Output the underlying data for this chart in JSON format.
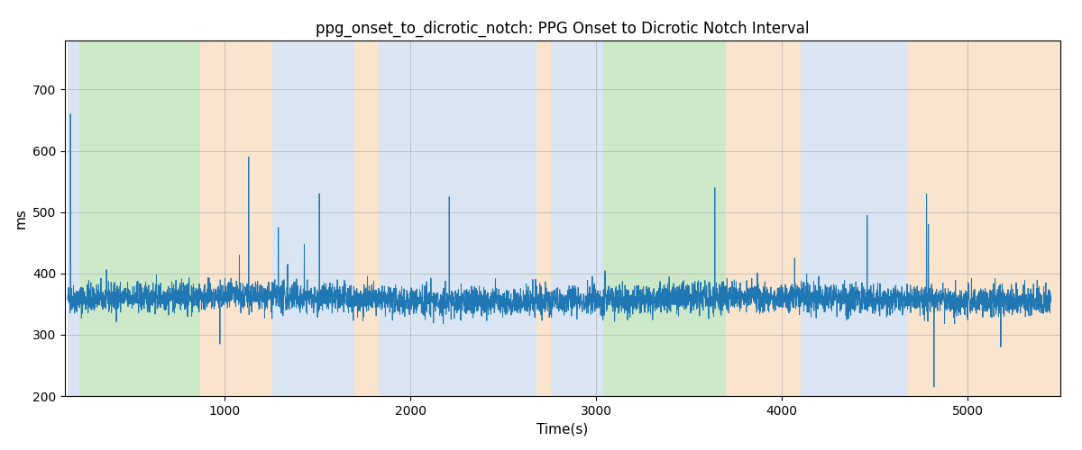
{
  "title": "ppg_onset_to_dicrotic_notch: PPG Onset to Dicrotic Notch Interval",
  "xlabel": "Time(s)",
  "ylabel": "ms",
  "xlim": [
    140,
    5500
  ],
  "ylim": [
    200,
    780
  ],
  "yticks": [
    200,
    300,
    400,
    500,
    600,
    700
  ],
  "xticks": [
    1000,
    2000,
    3000,
    4000,
    5000
  ],
  "line_color": "#1f77b4",
  "line_width": 0.7,
  "grid_color": "#b0b0b0",
  "colored_bands": [
    {
      "xmin": 155,
      "xmax": 220,
      "color": "#aec6e8",
      "alpha": 0.45
    },
    {
      "xmin": 220,
      "xmax": 870,
      "color": "#90cc85",
      "alpha": 0.45
    },
    {
      "xmin": 870,
      "xmax": 1255,
      "color": "#f5c592",
      "alpha": 0.45
    },
    {
      "xmin": 1255,
      "xmax": 1700,
      "color": "#aec6e8",
      "alpha": 0.45
    },
    {
      "xmin": 1700,
      "xmax": 1830,
      "color": "#f5c592",
      "alpha": 0.45
    },
    {
      "xmin": 1830,
      "xmax": 2680,
      "color": "#aec6e8",
      "alpha": 0.45
    },
    {
      "xmin": 2680,
      "xmax": 2755,
      "color": "#f5c592",
      "alpha": 0.45
    },
    {
      "xmin": 2755,
      "xmax": 2960,
      "color": "#aec6e8",
      "alpha": 0.45
    },
    {
      "xmin": 2960,
      "xmax": 3040,
      "color": "#aec6e8",
      "alpha": 0.45
    },
    {
      "xmin": 3040,
      "xmax": 3700,
      "color": "#90cc85",
      "alpha": 0.45
    },
    {
      "xmin": 3700,
      "xmax": 3770,
      "color": "#f5c592",
      "alpha": 0.45
    },
    {
      "xmin": 3770,
      "xmax": 4100,
      "color": "#f5c592",
      "alpha": 0.45
    },
    {
      "xmin": 4100,
      "xmax": 4680,
      "color": "#aec6e8",
      "alpha": 0.45
    },
    {
      "xmin": 4680,
      "xmax": 5500,
      "color": "#f5c592",
      "alpha": 0.45
    }
  ],
  "seed": 42,
  "n_points": 5300,
  "signal_mean": 358,
  "signal_std": 12,
  "title_fontsize": 12,
  "figsize": [
    12.0,
    5.0
  ],
  "dpi": 100,
  "spikes": [
    {
      "t": 170,
      "v": 660
    },
    {
      "t": 975,
      "v": 285
    },
    {
      "t": 1080,
      "v": 430
    },
    {
      "t": 1130,
      "v": 590
    },
    {
      "t": 1290,
      "v": 475
    },
    {
      "t": 1340,
      "v": 415
    },
    {
      "t": 1430,
      "v": 448
    },
    {
      "t": 1510,
      "v": 530
    },
    {
      "t": 2210,
      "v": 525
    },
    {
      "t": 2980,
      "v": 395
    },
    {
      "t": 3050,
      "v": 395
    },
    {
      "t": 3640,
      "v": 540
    },
    {
      "t": 4070,
      "v": 425
    },
    {
      "t": 4460,
      "v": 495
    },
    {
      "t": 4780,
      "v": 530
    },
    {
      "t": 4790,
      "v": 480
    },
    {
      "t": 4820,
      "v": 215
    },
    {
      "t": 5180,
      "v": 280
    }
  ]
}
